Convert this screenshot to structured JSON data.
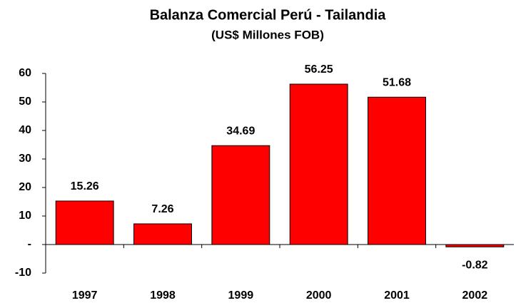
{
  "chart_data": {
    "type": "bar",
    "title": "Balanza Comercial Perú - Tailandia",
    "subtitle": "(US$ Millones FOB)",
    "categories": [
      "1997",
      "1998",
      "1999",
      "2000",
      "2001",
      "2002"
    ],
    "values": [
      15.26,
      7.26,
      34.69,
      56.25,
      51.68,
      -0.82
    ],
    "color": "#ff0000",
    "ylim": [
      -10,
      60
    ],
    "yticks": [
      -10,
      {
        "value": 0,
        "label": "-"
      },
      10,
      20,
      30,
      40,
      50,
      60
    ],
    "grid": false
  }
}
